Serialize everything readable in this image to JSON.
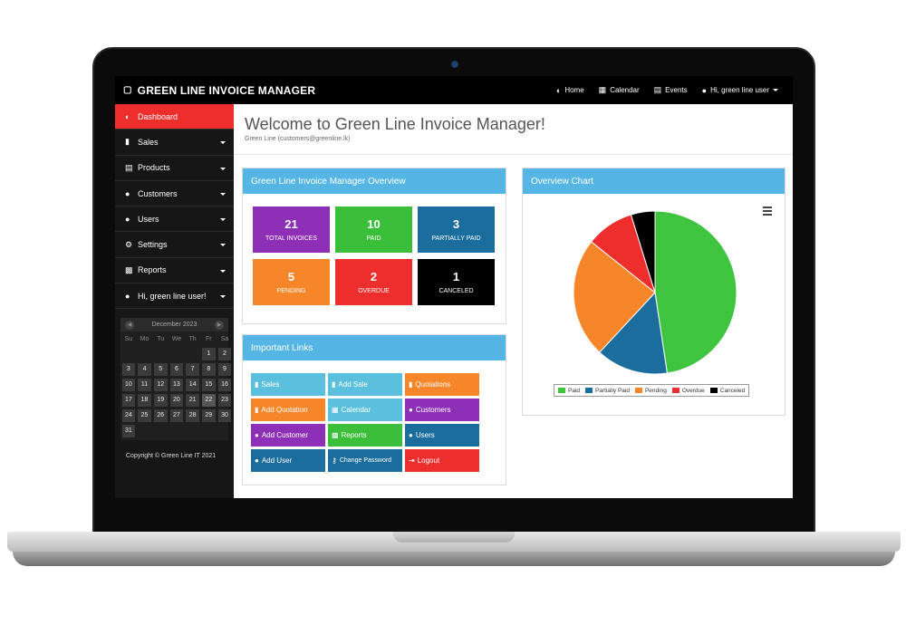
{
  "app": {
    "brand": "GREEN LINE INVOICE MANAGER",
    "nav": [
      {
        "label": "Home",
        "icon": "dashboard-icon"
      },
      {
        "label": "Calendar",
        "icon": "calendar-icon"
      },
      {
        "label": "Events",
        "icon": "list-icon"
      },
      {
        "label": "Hi, green line user",
        "icon": "user-icon"
      }
    ]
  },
  "sidebar": {
    "items": [
      {
        "label": "Dashboard",
        "icon": "dashboard-icon",
        "active": true
      },
      {
        "label": "Sales",
        "icon": "file-icon"
      },
      {
        "label": "Products",
        "icon": "list-icon"
      },
      {
        "label": "Customers",
        "icon": "users-icon"
      },
      {
        "label": "Users",
        "icon": "users-icon"
      },
      {
        "label": "Settings",
        "icon": "gear-icon"
      },
      {
        "label": "Reports",
        "icon": "bar-chart-icon"
      },
      {
        "label": "Hi, green line user!",
        "icon": "user-icon"
      }
    ],
    "calendar": {
      "month": "December 2023",
      "weekdays": [
        "Su",
        "Mo",
        "Tu",
        "We",
        "Th",
        "Fr",
        "Sa"
      ],
      "first_weekday_offset": 5,
      "days": 31,
      "today": 22
    },
    "copyright": "Copyright © Green Line IT 2021"
  },
  "page": {
    "title": "Welcome to Green Line Invoice Manager!",
    "subtitle": "Green Line (customers@greenline.lk)"
  },
  "overview": {
    "title": "Green Line Invoice Manager Overview",
    "tiles": [
      {
        "value": "21",
        "label": "Total Invoices",
        "color": "#8e2fb7"
      },
      {
        "value": "10",
        "label": "Paid",
        "color": "#3bbf3b"
      },
      {
        "value": "3",
        "label": "Partially Paid",
        "color": "#1a6d9c"
      },
      {
        "value": "5",
        "label": "Pending",
        "color": "#f7862a"
      },
      {
        "value": "2",
        "label": "Overdue",
        "color": "#ee2d2d"
      },
      {
        "value": "1",
        "label": "Canceled",
        "color": "#000000"
      }
    ]
  },
  "links": {
    "title": "Important Links",
    "items": [
      {
        "label": "Sales",
        "icon": "file-icon",
        "color": "#5bc0de"
      },
      {
        "label": "Add Sale",
        "icon": "file-icon",
        "color": "#5bc0de"
      },
      {
        "label": "Quotations",
        "icon": "file-icon",
        "color": "#f7862a"
      },
      {
        "label": "Add Quotation",
        "icon": "file-icon",
        "color": "#f7862a"
      },
      {
        "label": "Calendar",
        "icon": "calendar-icon",
        "color": "#5bc0de"
      },
      {
        "label": "Customers",
        "icon": "users-icon",
        "color": "#8e2fb7"
      },
      {
        "label": "Add Customer",
        "icon": "user-icon",
        "color": "#8e2fb7"
      },
      {
        "label": "Reports",
        "icon": "bar-chart-icon",
        "color": "#3bbf3b"
      },
      {
        "label": "Users",
        "icon": "users-icon",
        "color": "#1a6d9c"
      },
      {
        "label": "Add User",
        "icon": "user-icon",
        "color": "#1a6d9c"
      },
      {
        "label": "Change Password",
        "icon": "key-icon",
        "color": "#1a6d9c",
        "small": true
      },
      {
        "label": "Logout",
        "icon": "logout-icon",
        "color": "#ee2d2d"
      }
    ]
  },
  "chart_panel": {
    "title": "Overview Chart"
  },
  "chart_data": {
    "type": "pie",
    "labels": [
      "Paid",
      "Partially Paid",
      "Pending",
      "Overdue",
      "Canceled"
    ],
    "values": [
      10,
      3,
      5,
      2,
      1
    ],
    "colors": [
      "#3fc43f",
      "#1a6d9c",
      "#f7862a",
      "#ee2d2d",
      "#000000"
    ],
    "legend": "bottom"
  }
}
